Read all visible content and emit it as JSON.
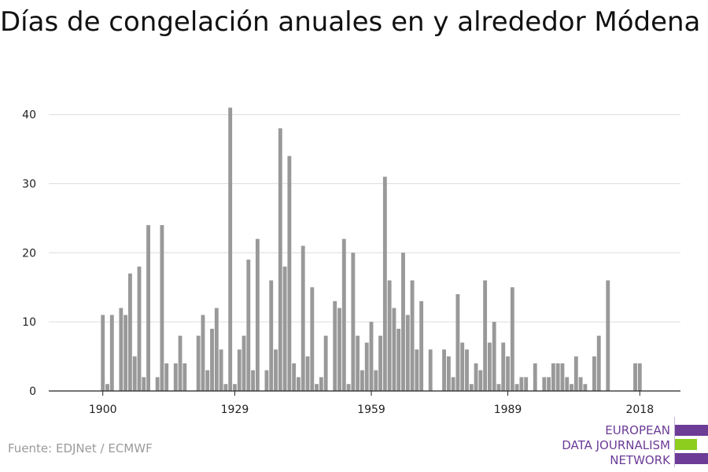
{
  "page": {
    "title": "Días de congelación anuales en y alrededor Módena",
    "source": "Fuente: EDJNet / ECMWF"
  },
  "logo": {
    "lines": [
      "EUROPEAN",
      "DATA JOURNALISM",
      "NETWORK"
    ],
    "colors": {
      "purple": "#6c3c97",
      "green": "#8ccd1e"
    }
  },
  "chart_data": {
    "type": "bar",
    "title": "Días de congelación anuales en y alrededor Módena",
    "xlabel": "",
    "ylabel": "",
    "bar_color": "#999999",
    "ylim": [
      0,
      42
    ],
    "yticks": [
      0,
      10,
      20,
      30,
      40
    ],
    "xlim": [
      1894,
      2024
    ],
    "xticks": [
      1900,
      1929,
      1959,
      1989,
      2018
    ],
    "grid": true,
    "x": [
      1900,
      1901,
      1902,
      1903,
      1904,
      1905,
      1906,
      1907,
      1908,
      1909,
      1910,
      1911,
      1912,
      1913,
      1914,
      1915,
      1916,
      1917,
      1918,
      1919,
      1920,
      1921,
      1922,
      1923,
      1924,
      1925,
      1926,
      1927,
      1928,
      1929,
      1930,
      1931,
      1932,
      1933,
      1934,
      1935,
      1936,
      1937,
      1938,
      1939,
      1940,
      1941,
      1942,
      1943,
      1944,
      1945,
      1946,
      1947,
      1948,
      1949,
      1950,
      1951,
      1952,
      1953,
      1954,
      1955,
      1956,
      1957,
      1958,
      1959,
      1960,
      1961,
      1962,
      1963,
      1964,
      1965,
      1966,
      1967,
      1968,
      1969,
      1970,
      1971,
      1972,
      1973,
      1974,
      1975,
      1976,
      1977,
      1978,
      1979,
      1980,
      1981,
      1982,
      1983,
      1984,
      1985,
      1986,
      1987,
      1988,
      1989,
      1990,
      1991,
      1992,
      1993,
      1994,
      1995,
      1996,
      1997,
      1998,
      1999,
      2000,
      2001,
      2002,
      2003,
      2004,
      2005,
      2006,
      2007,
      2008,
      2009,
      2010,
      2011,
      2012,
      2013,
      2014,
      2015,
      2016,
      2017,
      2018
    ],
    "values": [
      11,
      1,
      11,
      0,
      12,
      11,
      17,
      5,
      18,
      2,
      24,
      0,
      2,
      24,
      4,
      0,
      4,
      8,
      4,
      0,
      0,
      8,
      11,
      3,
      9,
      12,
      6,
      1,
      41,
      1,
      6,
      8,
      19,
      3,
      22,
      0,
      3,
      16,
      6,
      38,
      18,
      34,
      4,
      2,
      21,
      5,
      15,
      1,
      2,
      8,
      0,
      13,
      12,
      22,
      1,
      20,
      8,
      3,
      7,
      10,
      3,
      8,
      31,
      16,
      12,
      9,
      20,
      11,
      16,
      6,
      13,
      0,
      6,
      0,
      0,
      6,
      5,
      2,
      14,
      7,
      6,
      1,
      4,
      3,
      16,
      7,
      10,
      1,
      7,
      5,
      15,
      1,
      2,
      2,
      0,
      4,
      0,
      2,
      2,
      4,
      4,
      4,
      2,
      1,
      5,
      2,
      1,
      0,
      5,
      8,
      0,
      16,
      0,
      0,
      0,
      0,
      0,
      4,
      4
    ]
  }
}
